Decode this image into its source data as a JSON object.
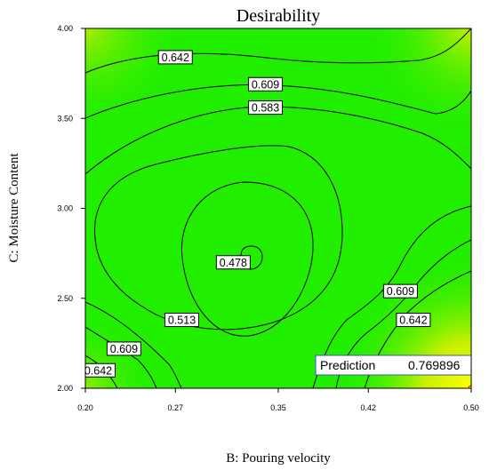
{
  "chart_data": {
    "type": "contour",
    "title": "Desirability",
    "xlabel": "B: Pouring velocity",
    "ylabel": "C: Moisture Content",
    "xlim": [
      0.2,
      0.5
    ],
    "ylim": [
      2.0,
      4.0
    ],
    "x_ticks": [
      "0.20",
      "0.27",
      "0.35",
      "0.42",
      "0.50"
    ],
    "y_ticks": [
      "2.00",
      "2.50",
      "3.00",
      "3.50",
      "4.00"
    ],
    "contour_levels": [
      {
        "value": "0.642",
        "label_at": [
          0.27,
          3.84
        ]
      },
      {
        "value": "0.609",
        "label_at": [
          0.34,
          3.69
        ]
      },
      {
        "value": "0.583",
        "label_at": [
          0.34,
          3.56
        ]
      },
      {
        "value": "0.478",
        "label_at": [
          0.315,
          2.7
        ]
      },
      {
        "value": "0.513",
        "label_at": [
          0.275,
          2.38
        ]
      },
      {
        "value": "0.609",
        "label_at": [
          0.445,
          2.54
        ]
      },
      {
        "value": "0.642",
        "label_at": [
          0.455,
          2.38
        ]
      },
      {
        "value": "0.609",
        "label_at": [
          0.23,
          2.22
        ]
      },
      {
        "value": "0.642",
        "label_at": [
          0.21,
          2.1
        ]
      }
    ],
    "prediction": {
      "label": "Prediction",
      "value": "0.769896",
      "x": 0.5,
      "y": 2.0
    },
    "colors": {
      "low": "#22ee00",
      "high": "#ffff00"
    }
  }
}
